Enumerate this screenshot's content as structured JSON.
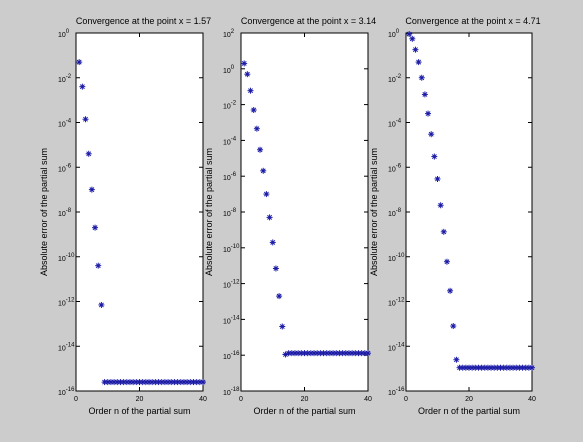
{
  "figure": {
    "background": "#cccccc"
  },
  "chart_data": [
    {
      "type": "scatter",
      "title": "Convergence at the point x =   1.57",
      "xlabel": "Order n of the partial sum",
      "ylabel": "Absolute error of the partial sum",
      "xlim": [
        0,
        40
      ],
      "ylim": [
        1e-16,
        1
      ],
      "yscale": "log",
      "xticks": [
        0,
        20,
        40
      ],
      "yticks": [
        {
          "value": 1,
          "base": "10",
          "exp": "0"
        },
        {
          "value": 0.01,
          "base": "10",
          "exp": "-2"
        },
        {
          "value": 0.0001,
          "base": "10",
          "exp": "-4"
        },
        {
          "value": 1e-06,
          "base": "10",
          "exp": "-6"
        },
        {
          "value": 1e-08,
          "base": "10",
          "exp": "-8"
        },
        {
          "value": 1e-10,
          "base": "10",
          "exp": "-10"
        },
        {
          "value": 1e-12,
          "base": "10",
          "exp": "-12"
        },
        {
          "value": 1e-14,
          "base": "10",
          "exp": "-14"
        },
        {
          "value": 1e-16,
          "base": "10",
          "exp": "-16"
        }
      ],
      "marker": "*",
      "color": "#1a1aa6",
      "series": [
        {
          "x": [
            1,
            2,
            3,
            4,
            5,
            6,
            7,
            8,
            9,
            10,
            11,
            12,
            13,
            14,
            15,
            16,
            17,
            18,
            19,
            20,
            21,
            22,
            23,
            24,
            25,
            26,
            27,
            28,
            29,
            30,
            31,
            32,
            33,
            34,
            35,
            36,
            37,
            38,
            39,
            40
          ],
          "y": [
            0.05,
            0.004,
            0.00014,
            4e-06,
            1e-07,
            2e-09,
            4e-11,
            7e-13,
            2.5e-16,
            2.5e-16,
            2.5e-16,
            2.5e-16,
            2.5e-16,
            2.5e-16,
            2.5e-16,
            2.5e-16,
            2.5e-16,
            2.5e-16,
            2.5e-16,
            2.5e-16,
            2.5e-16,
            2.5e-16,
            2.5e-16,
            2.5e-16,
            2.5e-16,
            2.5e-16,
            2.5e-16,
            2.5e-16,
            2.5e-16,
            2.5e-16,
            2.5e-16,
            2.5e-16,
            2.5e-16,
            2.5e-16,
            2.5e-16,
            2.5e-16,
            2.5e-16,
            2.5e-16,
            2.5e-16,
            2.5e-16
          ]
        }
      ]
    },
    {
      "type": "scatter",
      "title": "Convergence at the point x =   3.14",
      "xlabel": "Order n of the partial sum",
      "ylabel": "Absolute error of the partial sum",
      "xlim": [
        0,
        40
      ],
      "ylim": [
        1e-18,
        100
      ],
      "yscale": "log",
      "xticks": [
        0,
        20,
        40
      ],
      "yticks": [
        {
          "value": 100,
          "base": "10",
          "exp": "2"
        },
        {
          "value": 1,
          "base": "10",
          "exp": "0"
        },
        {
          "value": 0.01,
          "base": "10",
          "exp": "-2"
        },
        {
          "value": 0.0001,
          "base": "10",
          "exp": "-4"
        },
        {
          "value": 1e-06,
          "base": "10",
          "exp": "-6"
        },
        {
          "value": 1e-08,
          "base": "10",
          "exp": "-8"
        },
        {
          "value": 1e-10,
          "base": "10",
          "exp": "-10"
        },
        {
          "value": 1e-12,
          "base": "10",
          "exp": "-12"
        },
        {
          "value": 1e-14,
          "base": "10",
          "exp": "-14"
        },
        {
          "value": 1e-16,
          "base": "10",
          "exp": "-16"
        },
        {
          "value": 1e-18,
          "base": "10",
          "exp": "-18"
        }
      ],
      "marker": "*",
      "color": "#1a1aa6",
      "series": [
        {
          "x": [
            1,
            2,
            3,
            4,
            5,
            6,
            7,
            8,
            9,
            10,
            11,
            12,
            13,
            14,
            15,
            16,
            17,
            18,
            19,
            20,
            21,
            22,
            23,
            24,
            25,
            26,
            27,
            28,
            29,
            30,
            31,
            32,
            33,
            34,
            35,
            36,
            37,
            38,
            39,
            40
          ],
          "y": [
            2,
            0.5,
            0.06,
            0.005,
            0.00045,
            3e-05,
            2e-06,
            1e-07,
            5e-09,
            2e-10,
            7e-12,
            2e-13,
            4e-15,
            1.1e-16,
            1.3e-16,
            1.3e-16,
            1.3e-16,
            1.3e-16,
            1.3e-16,
            1.3e-16,
            1.3e-16,
            1.3e-16,
            1.3e-16,
            1.3e-16,
            1.3e-16,
            1.3e-16,
            1.3e-16,
            1.3e-16,
            1.3e-16,
            1.3e-16,
            1.3e-16,
            1.3e-16,
            1.3e-16,
            1.3e-16,
            1.3e-16,
            1.3e-16,
            1.3e-16,
            1.3e-16,
            1.3e-16,
            1.3e-16
          ]
        }
      ]
    },
    {
      "type": "scatter",
      "title": "Convergence at the point x =   4.71",
      "xlabel": "Order n of the partial sum",
      "ylabel": "Absolute error of the partial sum",
      "xlim": [
        0,
        40
      ],
      "ylim": [
        1e-16,
        1
      ],
      "yscale": "log",
      "xticks": [
        0,
        20,
        40
      ],
      "yticks": [
        {
          "value": 1,
          "base": "10",
          "exp": "0"
        },
        {
          "value": 0.01,
          "base": "10",
          "exp": "-2"
        },
        {
          "value": 0.0001,
          "base": "10",
          "exp": "-4"
        },
        {
          "value": 1e-06,
          "base": "10",
          "exp": "-6"
        },
        {
          "value": 1e-08,
          "base": "10",
          "exp": "-8"
        },
        {
          "value": 1e-10,
          "base": "10",
          "exp": "-10"
        },
        {
          "value": 1e-12,
          "base": "10",
          "exp": "-12"
        },
        {
          "value": 1e-14,
          "base": "10",
          "exp": "-14"
        },
        {
          "value": 1e-16,
          "base": "10",
          "exp": "-16"
        }
      ],
      "marker": "*",
      "color": "#1a1aa6",
      "series": [
        {
          "x": [
            1,
            2,
            3,
            4,
            5,
            6,
            7,
            8,
            9,
            10,
            11,
            12,
            13,
            14,
            15,
            16,
            17,
            18,
            19,
            20,
            21,
            22,
            23,
            24,
            25,
            26,
            27,
            28,
            29,
            30,
            31,
            32,
            33,
            34,
            35,
            36,
            37,
            38,
            39,
            40
          ],
          "y": [
            0.9,
            0.55,
            0.18,
            0.05,
            0.01,
            0.0018,
            0.00025,
            3e-05,
            3e-06,
            3e-07,
            2e-08,
            1.3e-09,
            6e-11,
            3e-12,
            8e-14,
            2.5e-15,
            1.1e-15,
            1.1e-15,
            1.1e-15,
            1.1e-15,
            1.1e-15,
            1.1e-15,
            1.1e-15,
            1.1e-15,
            1.1e-15,
            1.1e-15,
            1.1e-15,
            1.1e-15,
            1.1e-15,
            1.1e-15,
            1.1e-15,
            1.1e-15,
            1.1e-15,
            1.1e-15,
            1.1e-15,
            1.1e-15,
            1.1e-15,
            1.1e-15,
            1.1e-15,
            1.1e-15
          ]
        }
      ]
    }
  ]
}
